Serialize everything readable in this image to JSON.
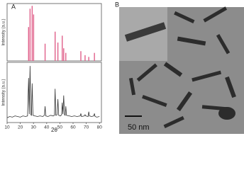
{
  "figure": {
    "panel_a": "A",
    "panel_b": "B",
    "scale_bar": "50 nm"
  },
  "chart_data": [
    {
      "type": "bar",
      "ylabel": "Intensity (a.u.)",
      "color": "#e0608a",
      "x": [
        26.3,
        27.4,
        29.0,
        30.1,
        38.8,
        46.4,
        48.5,
        51.8,
        52.9,
        54.5,
        65.9,
        69.1,
        71.9,
        76.2
      ],
      "values": [
        59,
        91,
        96,
        81,
        30,
        51,
        32,
        44,
        22,
        14,
        17,
        10,
        7,
        14
      ],
      "xlim": [
        10,
        81.5
      ],
      "ylim": [
        0,
        100
      ]
    },
    {
      "type": "line",
      "ylabel": "Intensity (a.u.)",
      "xlabel": "2θ",
      "color": "#333333",
      "x": [
        10,
        12,
        14,
        16,
        18,
        20,
        22,
        24,
        25.5,
        26.3,
        26.8,
        27.4,
        28.0,
        28.5,
        29.0,
        29.6,
        31,
        33,
        35,
        37,
        38.3,
        38.8,
        39.3,
        41,
        43,
        45,
        45.9,
        46.4,
        46.9,
        47.9,
        48.5,
        49.1,
        50.5,
        51.3,
        51.8,
        52.3,
        52.9,
        53.5,
        54.0,
        54.5,
        55.0,
        57,
        59,
        61,
        63,
        65.4,
        65.9,
        66.4,
        68.6,
        69.1,
        69.6,
        71.4,
        71.9,
        72.4,
        74,
        75.7,
        76.2,
        76.7,
        78,
        80
      ],
      "values": [
        8,
        10,
        9,
        11,
        10,
        9,
        11,
        10,
        11,
        74,
        14,
        94,
        13,
        12,
        65,
        12,
        11,
        10,
        11,
        10,
        12,
        27,
        11,
        10,
        12,
        11,
        12,
        56,
        12,
        13,
        39,
        12,
        11,
        13,
        33,
        14,
        45,
        13,
        12,
        27,
        12,
        11,
        10,
        11,
        10,
        11,
        15,
        10,
        11,
        13,
        11,
        10,
        18,
        11,
        10,
        11,
        15,
        10,
        9,
        10
      ],
      "xlim": [
        10,
        81.5
      ],
      "ylim": [
        0,
        100
      ],
      "xticks": [
        10,
        20,
        30,
        40,
        50,
        60,
        70,
        80
      ]
    }
  ]
}
